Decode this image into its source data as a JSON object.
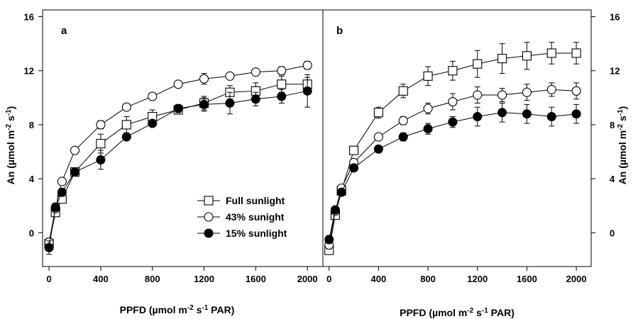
{
  "chart_data": [
    {
      "type": "line",
      "panel_label": "a",
      "xlabel": {
        "main": "PPFD (µmol m",
        "exp1": "-2",
        "mid": " s",
        "exp2": "-1",
        "tail": " PAR)"
      },
      "ylabel": {
        "main": "An (µmol m",
        "exp1": "-2",
        "mid": " s",
        "exp2": "-1",
        "tail": ")"
      },
      "xlim": [
        -50,
        2120
      ],
      "ylim": [
        -2.5,
        16.5
      ],
      "xticks": [
        0,
        400,
        800,
        1200,
        1600,
        2000
      ],
      "yticks": [
        0,
        4,
        8,
        12,
        16
      ],
      "y_axis_side": "left",
      "legend": {
        "placement": "center-right"
      },
      "x": [
        0,
        50,
        100,
        200,
        400,
        600,
        800,
        1000,
        1200,
        1400,
        1600,
        1800,
        2000
      ],
      "series": [
        {
          "name": "Full sunlight",
          "marker": "square-open",
          "values": [
            -0.8,
            1.5,
            2.5,
            4.5,
            6.6,
            8.0,
            8.6,
            9.1,
            9.6,
            10.4,
            10.5,
            11.0,
            11.0
          ],
          "errors": [
            0.4,
            0.3,
            0.3,
            0.3,
            0.7,
            0.6,
            0.5,
            0.3,
            0.5,
            0.5,
            0.6,
            0.6,
            0.5
          ]
        },
        {
          "name": "43% sunight",
          "marker": "circle-open",
          "values": [
            -0.7,
            1.8,
            3.8,
            6.1,
            8.0,
            9.3,
            10.1,
            11.0,
            11.4,
            11.6,
            11.9,
            12.0,
            12.4
          ],
          "errors": [
            0.3,
            0.2,
            0.2,
            0.2,
            0.3,
            0.2,
            0.2,
            0.2,
            0.4,
            0.2,
            0.1,
            0.3,
            0.3
          ]
        },
        {
          "name": "15% sunlight",
          "marker": "circle-filled",
          "values": [
            -1.1,
            1.9,
            3.0,
            4.5,
            5.4,
            7.1,
            8.1,
            9.2,
            9.5,
            9.6,
            9.9,
            10.1,
            10.5
          ],
          "errors": [
            0.5,
            0.3,
            0.3,
            0.3,
            0.7,
            0.2,
            0.2,
            0.3,
            0.5,
            0.8,
            0.5,
            0.5,
            1.2
          ]
        }
      ]
    },
    {
      "type": "line",
      "panel_label": "b",
      "xlabel": {
        "main": "PPFD (µmol m",
        "exp1": "-2",
        "mid": " s",
        "exp2": "-1",
        "tail": " PAR)"
      },
      "ylabel": {
        "main": "An (µmol m",
        "exp1": "-2",
        "mid": " s",
        "exp2": "-1",
        "tail": ")"
      },
      "xlim": [
        -50,
        2120
      ],
      "ylim": [
        -2.5,
        16.5
      ],
      "xticks": [
        0,
        400,
        800,
        1200,
        1600,
        2000
      ],
      "yticks": [
        0,
        4,
        8,
        12,
        16
      ],
      "y_axis_side": "right",
      "x": [
        0,
        50,
        100,
        200,
        400,
        600,
        800,
        1000,
        1200,
        1400,
        1600,
        1800,
        2000
      ],
      "series": [
        {
          "name": "Full sunlight",
          "marker": "square-open",
          "values": [
            -1.3,
            1.3,
            3.1,
            6.1,
            8.9,
            10.5,
            11.6,
            12.0,
            12.5,
            12.9,
            13.1,
            13.3,
            13.3
          ],
          "errors": [
            0.3,
            0.3,
            0.3,
            0.3,
            0.4,
            0.5,
            0.7,
            0.7,
            1.0,
            1.1,
            1.0,
            0.8,
            0.8
          ]
        },
        {
          "name": "43% sunight",
          "marker": "circle-open",
          "values": [
            -0.9,
            1.6,
            3.3,
            5.2,
            7.1,
            8.3,
            9.2,
            9.7,
            10.2,
            10.2,
            10.4,
            10.6,
            10.5
          ],
          "errors": [
            0.3,
            0.2,
            0.2,
            0.2,
            0.2,
            0.3,
            0.4,
            0.6,
            0.6,
            0.5,
            0.6,
            0.5,
            0.6
          ]
        },
        {
          "name": "15% sunlight",
          "marker": "circle-filled",
          "values": [
            -0.5,
            1.7,
            3.0,
            4.8,
            6.2,
            7.1,
            7.7,
            8.2,
            8.6,
            8.9,
            8.8,
            8.6,
            8.8
          ],
          "errors": [
            0.3,
            0.2,
            0.2,
            0.2,
            0.2,
            0.3,
            0.4,
            0.4,
            0.7,
            0.7,
            0.7,
            0.7,
            0.7
          ]
        }
      ]
    }
  ]
}
